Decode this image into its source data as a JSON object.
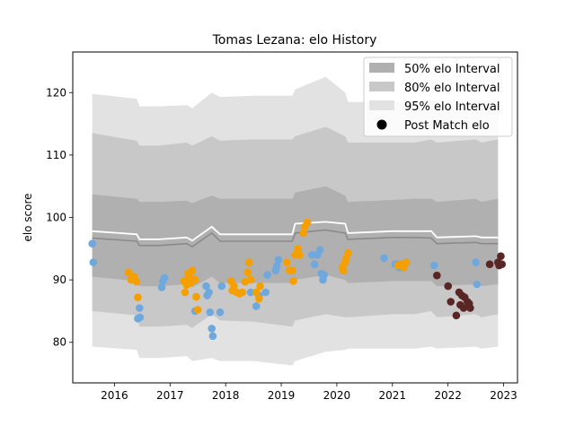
{
  "chart_data": {
    "type": "scatter",
    "title": "Tomas Lezana: elo History",
    "xlabel": "",
    "ylabel": "elo score",
    "xlim": [
      2015.25,
      2023.25
    ],
    "ylim": [
      73.5,
      126.5
    ],
    "x_ticks": [
      "2016",
      "2017",
      "2018",
      "2019",
      "2020",
      "2021",
      "2022",
      "2023"
    ],
    "y_ticks": [
      80,
      90,
      100,
      110,
      120
    ],
    "grid": false,
    "legend_position": "top-right",
    "legend": [
      {
        "label": "50% elo Interval",
        "kind": "patch",
        "color": "#b0b0b0"
      },
      {
        "label": "80% elo Interval",
        "kind": "patch",
        "color": "#c8c8c8"
      },
      {
        "label": "95% elo Interval",
        "kind": "patch",
        "color": "#e2e2e2"
      },
      {
        "label": "Post Match elo",
        "kind": "marker",
        "color": "#000000"
      }
    ],
    "colors": {
      "band95": "#e2e2e2",
      "band80": "#c8c8c8",
      "band50": "#b0b0b0",
      "median_line": "#8a8a8a",
      "mean_line": "#ffffff",
      "blue": "#6fa8dc",
      "orange": "#f5a000",
      "dark": "#5a2525"
    },
    "bands": {
      "x": [
        2015.6,
        2016.4,
        2016.45,
        2016.8,
        2017.3,
        2017.4,
        2017.75,
        2017.9,
        2018.5,
        2019.2,
        2019.25,
        2019.8,
        2020.15,
        2020.2,
        2021.0,
        2021.4,
        2021.7,
        2021.8,
        2022.5,
        2022.6,
        2022.9
      ],
      "p975": [
        119.8,
        119.0,
        117.8,
        117.8,
        118.0,
        117.5,
        120.0,
        119.3,
        119.5,
        119.5,
        120.5,
        122.5,
        120.0,
        118.5,
        118.5,
        118.5,
        119.0,
        118.5,
        119.0,
        118.5,
        119.0
      ],
      "p90": [
        113.5,
        112.3,
        111.5,
        111.5,
        112.0,
        111.5,
        113.0,
        112.3,
        112.5,
        112.5,
        113.0,
        114.5,
        113.0,
        112.0,
        112.0,
        112.0,
        112.5,
        112.0,
        112.5,
        112.0,
        112.5
      ],
      "p75": [
        103.7,
        103.0,
        102.5,
        102.5,
        102.7,
        102.3,
        103.5,
        103.0,
        103.0,
        103.0,
        104.0,
        105.0,
        103.5,
        102.5,
        102.8,
        103.0,
        103.0,
        102.5,
        103.0,
        102.5,
        103.0
      ],
      "mean": [
        97.8,
        97.3,
        96.5,
        96.5,
        96.8,
        96.3,
        98.5,
        97.3,
        97.3,
        97.3,
        99.0,
        99.3,
        99.0,
        97.5,
        97.8,
        97.8,
        97.8,
        96.8,
        97.0,
        96.8,
        96.8
      ],
      "median": [
        96.7,
        96.2,
        95.5,
        95.5,
        95.8,
        95.3,
        97.5,
        96.2,
        96.2,
        96.2,
        97.5,
        98.0,
        97.5,
        96.5,
        96.8,
        96.8,
        96.7,
        95.8,
        96.0,
        95.8,
        95.8
      ],
      "p25": [
        90.5,
        89.8,
        89.0,
        89.0,
        89.3,
        88.8,
        90.5,
        89.5,
        89.5,
        89.5,
        90.0,
        90.8,
        90.0,
        89.5,
        89.8,
        89.8,
        89.8,
        89.0,
        89.3,
        89.0,
        89.3
      ],
      "p10": [
        85.0,
        84.3,
        82.5,
        82.5,
        82.8,
        82.3,
        84.5,
        83.5,
        83.3,
        82.5,
        83.5,
        84.5,
        84.0,
        84.0,
        84.5,
        84.5,
        85.0,
        84.0,
        84.5,
        84.0,
        84.5
      ],
      "p025": [
        79.3,
        78.8,
        77.5,
        77.5,
        77.8,
        77.0,
        77.5,
        77.0,
        77.0,
        76.3,
        77.0,
        78.5,
        78.8,
        79.0,
        79.0,
        79.0,
        79.3,
        79.0,
        79.3,
        79.0,
        79.3
      ]
    },
    "series": [
      {
        "color_key": "blue",
        "points": [
          [
            2015.6,
            95.8
          ],
          [
            2015.62,
            92.8
          ],
          [
            2016.45,
            85.5
          ],
          [
            2016.42,
            83.8
          ],
          [
            2016.46,
            84.0
          ],
          [
            2016.85,
            88.8
          ],
          [
            2016.87,
            89.8
          ],
          [
            2016.9,
            90.3
          ],
          [
            2017.45,
            85.0
          ],
          [
            2017.65,
            89.0
          ],
          [
            2017.67,
            87.5
          ],
          [
            2017.7,
            88.0
          ],
          [
            2017.72,
            84.8
          ],
          [
            2017.75,
            82.2
          ],
          [
            2017.77,
            81.0
          ],
          [
            2017.9,
            84.8
          ],
          [
            2017.93,
            89.0
          ],
          [
            2018.45,
            88.0
          ],
          [
            2018.55,
            85.8
          ],
          [
            2018.6,
            87.5
          ],
          [
            2018.72,
            88.0
          ],
          [
            2018.75,
            90.8
          ],
          [
            2018.9,
            91.5
          ],
          [
            2018.92,
            92.2
          ],
          [
            2018.95,
            93.2
          ],
          [
            2019.55,
            94.0
          ],
          [
            2019.6,
            92.5
          ],
          [
            2019.65,
            94.0
          ],
          [
            2019.7,
            94.8
          ],
          [
            2019.72,
            91.0
          ],
          [
            2019.75,
            90.0
          ],
          [
            2019.77,
            90.8
          ],
          [
            2020.85,
            93.5
          ],
          [
            2021.05,
            92.5
          ],
          [
            2021.1,
            92.5
          ],
          [
            2021.12,
            92.0
          ],
          [
            2021.15,
            92.3
          ],
          [
            2021.2,
            92.0
          ],
          [
            2021.25,
            92.8
          ],
          [
            2021.75,
            92.3
          ],
          [
            2022.5,
            92.8
          ],
          [
            2022.52,
            89.3
          ]
        ]
      },
      {
        "color_key": "orange",
        "points": [
          [
            2016.25,
            91.2
          ],
          [
            2016.3,
            90.0
          ],
          [
            2016.35,
            90.5
          ],
          [
            2016.4,
            89.7
          ],
          [
            2016.42,
            87.2
          ],
          [
            2017.25,
            89.8
          ],
          [
            2017.27,
            88.0
          ],
          [
            2017.3,
            89.2
          ],
          [
            2017.32,
            91.0
          ],
          [
            2017.35,
            90.5
          ],
          [
            2017.37,
            89.5
          ],
          [
            2017.4,
            91.5
          ],
          [
            2017.45,
            90.0
          ],
          [
            2017.47,
            87.3
          ],
          [
            2017.5,
            85.2
          ],
          [
            2018.1,
            89.8
          ],
          [
            2018.12,
            88.3
          ],
          [
            2018.15,
            89.0
          ],
          [
            2018.2,
            88.0
          ],
          [
            2018.25,
            87.8
          ],
          [
            2018.3,
            88.0
          ],
          [
            2018.35,
            89.7
          ],
          [
            2018.4,
            91.2
          ],
          [
            2018.42,
            92.8
          ],
          [
            2018.45,
            90.0
          ],
          [
            2018.55,
            88.0
          ],
          [
            2018.6,
            87.0
          ],
          [
            2018.62,
            89.0
          ],
          [
            2019.1,
            92.8
          ],
          [
            2019.15,
            91.5
          ],
          [
            2019.2,
            91.5
          ],
          [
            2019.22,
            89.8
          ],
          [
            2019.25,
            94.0
          ],
          [
            2019.3,
            95.0
          ],
          [
            2019.33,
            94.0
          ],
          [
            2019.4,
            97.5
          ],
          [
            2019.42,
            98.5
          ],
          [
            2019.47,
            99.2
          ],
          [
            2020.1,
            92.0
          ],
          [
            2020.12,
            91.5
          ],
          [
            2020.15,
            92.8
          ],
          [
            2020.17,
            93.5
          ],
          [
            2020.2,
            94.3
          ],
          [
            2021.1,
            92.3
          ],
          [
            2021.15,
            92.5
          ],
          [
            2021.2,
            92.0
          ],
          [
            2021.25,
            92.8
          ]
        ]
      },
      {
        "color_key": "dark",
        "points": [
          [
            2021.8,
            90.7
          ],
          [
            2022.0,
            89.0
          ],
          [
            2022.05,
            86.5
          ],
          [
            2022.2,
            88.0
          ],
          [
            2022.22,
            86.0
          ],
          [
            2022.25,
            87.5
          ],
          [
            2022.28,
            85.5
          ],
          [
            2022.3,
            87.2
          ],
          [
            2022.35,
            86.5
          ],
          [
            2022.38,
            86.2
          ],
          [
            2022.4,
            85.5
          ],
          [
            2022.15,
            84.3
          ],
          [
            2022.75,
            92.5
          ],
          [
            2022.9,
            92.8
          ],
          [
            2022.92,
            92.3
          ],
          [
            2022.95,
            93.8
          ],
          [
            2022.97,
            92.5
          ]
        ]
      }
    ]
  }
}
